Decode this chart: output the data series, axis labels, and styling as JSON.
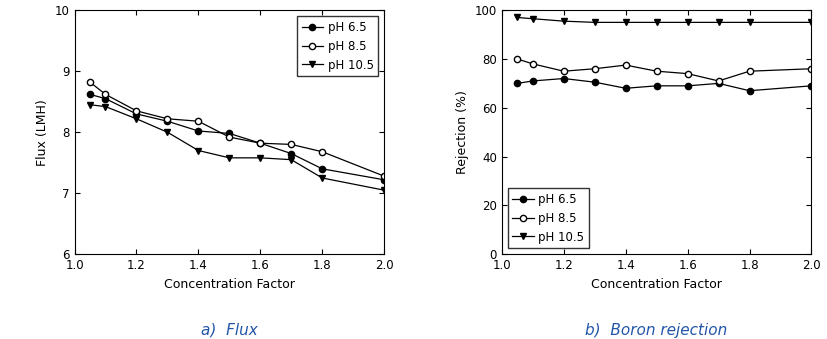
{
  "flux": {
    "x": [
      1.05,
      1.1,
      1.2,
      1.3,
      1.4,
      1.5,
      1.6,
      1.7,
      1.8,
      2.0
    ],
    "pH65": [
      8.62,
      8.55,
      8.3,
      8.18,
      8.02,
      7.98,
      7.82,
      7.65,
      7.4,
      7.22
    ],
    "pH85": [
      8.82,
      8.62,
      8.35,
      8.22,
      8.18,
      7.92,
      7.82,
      7.8,
      7.68,
      7.28
    ],
    "pH105": [
      8.45,
      8.42,
      8.22,
      8.0,
      7.7,
      7.58,
      7.58,
      7.55,
      7.25,
      7.05
    ],
    "ylabel": "Flux (LMH)",
    "xlabel": "Concentration Factor",
    "ylim": [
      6,
      10
    ],
    "xlim": [
      1.0,
      2.0
    ],
    "yticks": [
      6,
      7,
      8,
      9,
      10
    ],
    "xticks": [
      1.0,
      1.2,
      1.4,
      1.6,
      1.8,
      2.0
    ],
    "subtitle": "a)  Flux"
  },
  "rejection": {
    "x": [
      1.05,
      1.1,
      1.2,
      1.3,
      1.4,
      1.5,
      1.6,
      1.7,
      1.8,
      2.0
    ],
    "pH65": [
      70,
      71,
      72,
      70.5,
      68,
      69,
      69,
      70,
      67,
      69
    ],
    "pH85": [
      80,
      78,
      75,
      76,
      77.5,
      75,
      74,
      71,
      75,
      76
    ],
    "pH105": [
      97,
      96.5,
      95.5,
      95,
      95,
      95,
      95,
      95,
      95,
      95
    ],
    "ylabel": "Rejection (%)",
    "xlabel": "Concentration Factor",
    "ylim": [
      0,
      100
    ],
    "xlim": [
      1.0,
      2.0
    ],
    "yticks": [
      0,
      20,
      40,
      60,
      80,
      100
    ],
    "xticks": [
      1.0,
      1.2,
      1.4,
      1.6,
      1.8,
      2.0
    ],
    "subtitle": "b)  Boron rejection"
  },
  "legend_labels": [
    "pH 6.5",
    "pH 8.5",
    "pH 10.5"
  ],
  "line_color": "#000000",
  "subtitle_fontsize": 11,
  "label_fontsize": 9,
  "tick_fontsize": 8.5,
  "legend_fontsize": 8.5
}
